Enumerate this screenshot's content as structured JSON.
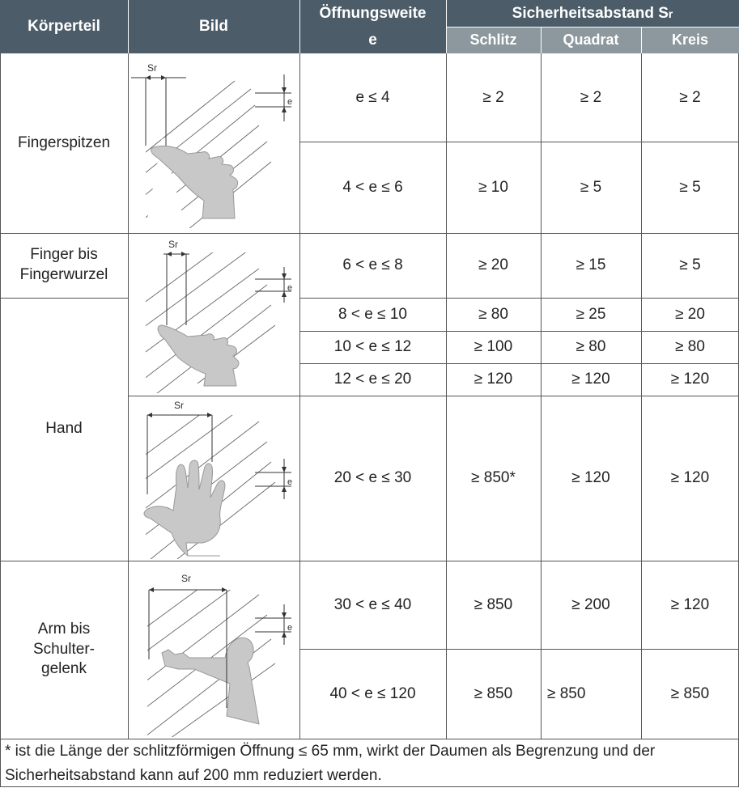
{
  "header": {
    "koerperteil": "Körperteil",
    "bild": "Bild",
    "oeffnungsweite": "Öffnungsweite",
    "e": "e",
    "sicherheitsabstand": "Sicherheitsabstand S",
    "sicherheitsabstand_sub": "r",
    "schlitz": "Schlitz",
    "quadrat": "Quadrat",
    "kreis": "Kreis"
  },
  "body_parts": {
    "fingerspitzen": "Fingerspitzen",
    "finger_bis_fingerwurzel": "Finger bis Fingerwurzel",
    "hand": "Hand",
    "arm_bis_schultergelenk": "Arm bis Schulter-gelenk"
  },
  "picture_labels": {
    "sr": "Sr",
    "e": "e"
  },
  "rows": [
    {
      "opening": "e ≤ 4",
      "schlitz": "≥ 2",
      "quadrat": "≥ 2",
      "kreis": "≥ 2"
    },
    {
      "opening": "4 < e ≤ 6",
      "schlitz": "≥ 10",
      "quadrat": "≥ 5",
      "kreis": "≥ 5"
    },
    {
      "opening": "6 < e ≤ 8",
      "schlitz": "≥ 20",
      "quadrat": "≥ 15",
      "kreis": "≥ 5"
    },
    {
      "opening": "8 < e ≤ 10",
      "schlitz": "≥ 80",
      "quadrat": "≥ 25",
      "kreis": "≥ 20"
    },
    {
      "opening": "10 < e ≤ 12",
      "schlitz": "≥ 100",
      "quadrat": "≥ 80",
      "kreis": "≥ 80"
    },
    {
      "opening": "12 < e ≤ 20",
      "schlitz": "≥ 120",
      "quadrat": "≥ 120",
      "kreis": "≥ 120"
    },
    {
      "opening": "20 < e ≤ 30",
      "schlitz": "≥ 850*",
      "quadrat": "≥ 120",
      "kreis": "≥ 120"
    },
    {
      "opening": "30 < e ≤ 40",
      "schlitz": "≥ 850",
      "quadrat": "≥ 200",
      "kreis": "≥ 120"
    },
    {
      "opening": "40 < e ≤ 120",
      "schlitz": "≥ 850",
      "quadrat": "≥ 850",
      "kreis": "≥ 850"
    }
  ],
  "footnote": "* ist die Länge der schlitzförmigen Öffnung ≤ 65 mm, wirkt der Daumen als Begrenzung und der Sicherheitsabstand kann auf 200 mm reduziert werden.",
  "colors": {
    "header_dark": "#4c5c68",
    "header_light": "#8c979e",
    "figure_fill": "#c8c8c8"
  }
}
